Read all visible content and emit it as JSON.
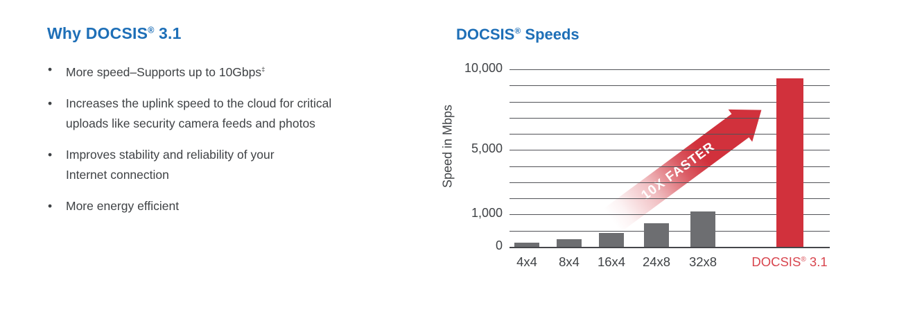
{
  "colors": {
    "accent_blue": "#1e6fb7",
    "brand_red": "#d1313c",
    "bar_gray": "#6d6e71",
    "text_dark": "#3f4245",
    "grid_line": "#515257"
  },
  "left_panel": {
    "heading": "Why DOCSIS® 3.1",
    "bullet_icon": "bullet-dot",
    "bullets": [
      {
        "lines": [
          "More speed–Supports up to 10Gbps‡"
        ]
      },
      {
        "lines": [
          "Increases the uplink speed to the cloud for critical",
          "uploads like security camera feeds and photos"
        ]
      },
      {
        "lines": [
          "Improves stability and reliability of your",
          "Internet connection"
        ]
      },
      {
        "lines": [
          "More energy efficient"
        ]
      }
    ]
  },
  "chart_data": {
    "type": "bar",
    "title": "DOCSIS® Speeds",
    "xlabel": "",
    "ylabel": "Speed in Mbps",
    "categories": [
      "4x4",
      "8x4",
      "16x4",
      "24x8",
      "32x8",
      "DOCSIS® 3.1"
    ],
    "values": [
      150,
      250,
      450,
      750,
      1250,
      9500
    ],
    "units": "Mbps",
    "ylim": [
      0,
      10000
    ],
    "axis_line_values": [
      0,
      500,
      1000,
      2000,
      3000,
      4000,
      5000,
      6000,
      7000,
      8000,
      9000,
      10000
    ],
    "ytick_labels": [
      {
        "value": 0,
        "label": "0"
      },
      {
        "value": 1000,
        "label": "1,000"
      },
      {
        "value": 5000,
        "label": "5,000"
      },
      {
        "value": 10000,
        "label": "10,000"
      }
    ],
    "bar_colors": [
      "#6d6e71",
      "#6d6e71",
      "#6d6e71",
      "#6d6e71",
      "#6d6e71",
      "#d1313c"
    ],
    "xtick_colors": [
      "#3f4245",
      "#3f4245",
      "#3f4245",
      "#3f4245",
      "#3f4245",
      "#d8454e"
    ],
    "grid": true,
    "legend": false,
    "annotation": {
      "text": "10X FASTER",
      "color": "#ffffff",
      "background": "#d1313c"
    }
  }
}
